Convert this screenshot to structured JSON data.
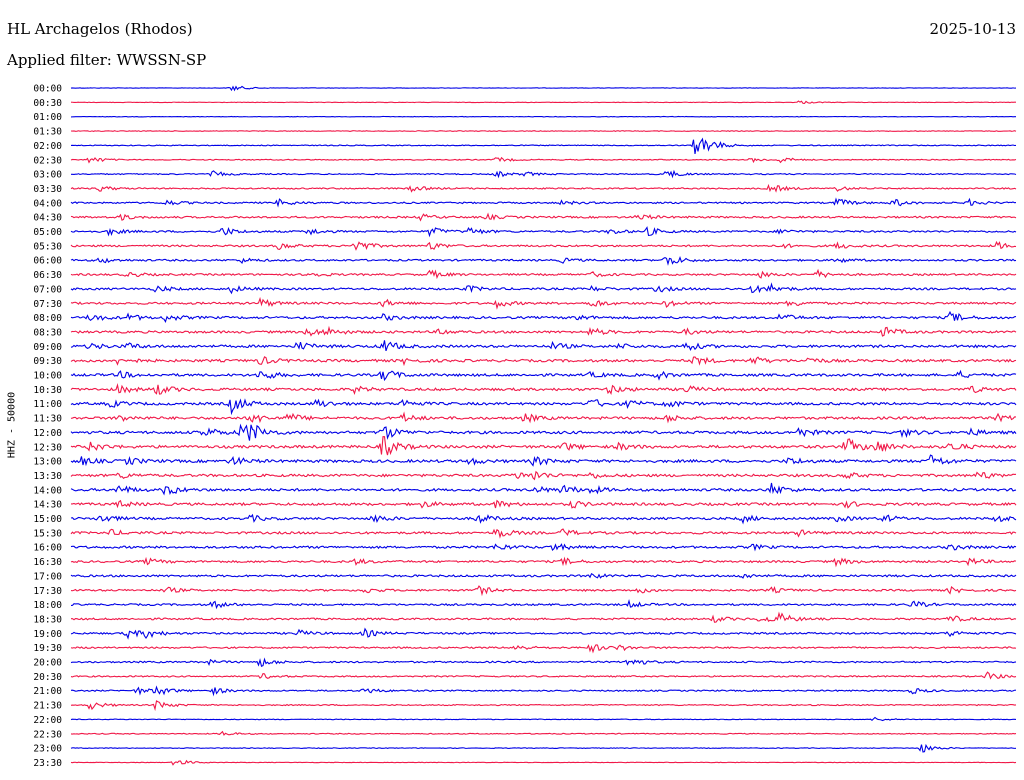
{
  "header": {
    "station": "HL Archagelos (Rhodos)",
    "date": "2025-10-13",
    "filter": "Applied filter: WWSSN-SP",
    "channel": "HHZ - 50000"
  },
  "colors": {
    "blue": "#0000e6",
    "red": "#f01848"
  },
  "chart_data": {
    "type": "line",
    "title": "HL Archagelos (Rhodos)",
    "ylabel": "HHZ - 50000",
    "rows": [
      "00:00",
      "00:30",
      "01:00",
      "01:30",
      "02:00",
      "02:30",
      "03:00",
      "03:30",
      "04:00",
      "04:30",
      "05:00",
      "05:30",
      "06:00",
      "06:30",
      "07:00",
      "07:30",
      "08:00",
      "08:30",
      "09:00",
      "09:30",
      "10:00",
      "10:30",
      "11:00",
      "11:30",
      "12:00",
      "12:30",
      "13:00",
      "13:30",
      "14:00",
      "14:30",
      "15:00",
      "15:30",
      "16:00",
      "16:30",
      "17:00",
      "17:30",
      "18:00",
      "18:30",
      "19:00",
      "19:30",
      "20:00",
      "20:30",
      "21:00",
      "21:30",
      "22:00",
      "22:30",
      "23:00",
      "23:30"
    ],
    "row_colors": [
      "blue",
      "red"
    ],
    "noise": [
      0.1,
      0.1,
      0.1,
      0.15,
      0.2,
      0.2,
      0.25,
      0.3,
      0.35,
      0.4,
      0.4,
      0.4,
      0.4,
      0.4,
      0.45,
      0.45,
      0.5,
      0.5,
      0.55,
      0.55,
      0.55,
      0.55,
      0.55,
      0.55,
      0.6,
      0.6,
      0.6,
      0.55,
      0.55,
      0.55,
      0.5,
      0.5,
      0.5,
      0.45,
      0.45,
      0.4,
      0.4,
      0.4,
      0.4,
      0.35,
      0.35,
      0.3,
      0.3,
      0.25,
      0.15,
      0.2,
      0.15,
      0.1
    ],
    "events": [
      [
        [
          0.17,
          1.5
        ]
      ],
      [
        [
          0.77,
          0.8
        ]
      ],
      [],
      [],
      [
        [
          0.66,
          4
        ],
        [
          0.67,
          3
        ]
      ],
      [
        [
          0.02,
          1.5
        ],
        [
          0.45,
          1.2
        ],
        [
          0.72,
          1.0
        ],
        [
          0.75,
          1.3
        ]
      ],
      [
        [
          0.15,
          1.3
        ],
        [
          0.45,
          1.3
        ],
        [
          0.48,
          0.9
        ],
        [
          0.63,
          2
        ]
      ],
      [
        [
          0.03,
          1.2
        ],
        [
          0.36,
          1.4
        ],
        [
          0.74,
          2
        ],
        [
          0.81,
          1.1
        ]
      ],
      [
        [
          0.1,
          1.2
        ],
        [
          0.22,
          1.6
        ],
        [
          0.52,
          1.0
        ],
        [
          0.81,
          2
        ],
        [
          0.87,
          1.8
        ],
        [
          0.95,
          1.4
        ]
      ],
      [
        [
          0.05,
          1.4
        ],
        [
          0.37,
          1.3
        ],
        [
          0.44,
          1.1
        ],
        [
          0.6,
          1.5
        ]
      ],
      [
        [
          0.04,
          1.4
        ],
        [
          0.16,
          2
        ],
        [
          0.25,
          1.5
        ],
        [
          0.38,
          2
        ],
        [
          0.42,
          1.8
        ],
        [
          0.57,
          1.2
        ],
        [
          0.61,
          1.8
        ],
        [
          0.75,
          1.0
        ]
      ],
      [
        [
          0.22,
          1.6
        ],
        [
          0.3,
          3
        ],
        [
          0.38,
          1.8
        ],
        [
          0.75,
          1.0
        ],
        [
          0.81,
          1.4
        ],
        [
          0.98,
          1.6
        ]
      ],
      [
        [
          0.03,
          1.3
        ],
        [
          0.18,
          1.0
        ],
        [
          0.52,
          1.0
        ],
        [
          0.63,
          3
        ],
        [
          0.81,
          1.1
        ]
      ],
      [
        [
          0.06,
          1.2
        ],
        [
          0.25,
          1.4
        ],
        [
          0.38,
          1.8
        ],
        [
          0.55,
          1.1
        ],
        [
          0.73,
          1.3
        ],
        [
          0.79,
          1.6
        ]
      ],
      [
        [
          0.09,
          1.4
        ],
        [
          0.17,
          1.5
        ],
        [
          0.42,
          1.3
        ],
        [
          0.55,
          1.0
        ],
        [
          0.62,
          1.4
        ],
        [
          0.72,
          1.6
        ],
        [
          0.74,
          1.8
        ]
      ],
      [
        [
          0.2,
          2
        ],
        [
          0.33,
          1.6
        ],
        [
          0.45,
          1.8
        ],
        [
          0.55,
          2
        ],
        [
          0.63,
          1.4
        ],
        [
          0.76,
          1.6
        ]
      ],
      [
        [
          0.02,
          1.8
        ],
        [
          0.06,
          1.4
        ],
        [
          0.1,
          1.5
        ],
        [
          0.33,
          1.3
        ],
        [
          0.53,
          1.6
        ],
        [
          0.75,
          1.8
        ],
        [
          0.93,
          2.5
        ]
      ],
      [
        [
          0.25,
          2
        ],
        [
          0.27,
          1.6
        ],
        [
          0.39,
          1.2
        ],
        [
          0.55,
          1.8
        ],
        [
          0.65,
          1.2
        ],
        [
          0.86,
          2.2
        ]
      ],
      [
        [
          0.02,
          1.4
        ],
        [
          0.06,
          1.2
        ],
        [
          0.24,
          2
        ],
        [
          0.33,
          3
        ],
        [
          0.51,
          1.5
        ],
        [
          0.58,
          1.1
        ],
        [
          0.65,
          2
        ]
      ],
      [
        [
          0.05,
          1.6
        ],
        [
          0.2,
          1.8
        ],
        [
          0.35,
          1.4
        ],
        [
          0.66,
          2
        ],
        [
          0.72,
          2
        ],
        [
          0.78,
          1.3
        ]
      ],
      [
        [
          0.05,
          1.5
        ],
        [
          0.2,
          2.5
        ],
        [
          0.33,
          3
        ],
        [
          0.55,
          1.1
        ],
        [
          0.62,
          1.6
        ],
        [
          0.94,
          1.3
        ]
      ],
      [
        [
          0.05,
          1.8
        ],
        [
          0.09,
          2.5
        ],
        [
          0.3,
          1.3
        ],
        [
          0.57,
          2
        ],
        [
          0.65,
          1.6
        ],
        [
          0.95,
          1.6
        ]
      ],
      [
        [
          0.04,
          1.6
        ],
        [
          0.17,
          4
        ],
        [
          0.26,
          2
        ],
        [
          0.35,
          1.8
        ],
        [
          0.55,
          2.2
        ],
        [
          0.59,
          1.5
        ],
        [
          0.63,
          1.8
        ]
      ],
      [
        [
          0.05,
          1.5
        ],
        [
          0.19,
          2.5
        ],
        [
          0.23,
          2
        ],
        [
          0.35,
          2
        ],
        [
          0.48,
          1.8
        ],
        [
          0.63,
          1.6
        ],
        [
          0.98,
          1.4
        ]
      ],
      [
        [
          0.14,
          2.5
        ],
        [
          0.18,
          4
        ],
        [
          0.19,
          3
        ],
        [
          0.33,
          3.5
        ],
        [
          0.77,
          2
        ],
        [
          0.88,
          1.6
        ],
        [
          0.95,
          1.4
        ]
      ],
      [
        [
          0.02,
          2
        ],
        [
          0.33,
          5
        ],
        [
          0.52,
          1.8
        ],
        [
          0.58,
          1.5
        ],
        [
          0.82,
          4
        ],
        [
          0.85,
          3
        ],
        [
          0.93,
          2
        ]
      ],
      [
        [
          0.01,
          1.8
        ],
        [
          0.06,
          1.5
        ],
        [
          0.17,
          2
        ],
        [
          0.42,
          1.5
        ],
        [
          0.49,
          2
        ],
        [
          0.76,
          1.6
        ],
        [
          0.91,
          3
        ]
      ],
      [
        [
          0.05,
          1.4
        ],
        [
          0.47,
          1.6
        ],
        [
          0.49,
          1.8
        ],
        [
          0.55,
          1.2
        ],
        [
          0.82,
          1.4
        ],
        [
          0.96,
          2
        ]
      ],
      [
        [
          0.05,
          2
        ],
        [
          0.1,
          2.5
        ],
        [
          0.49,
          1.6
        ],
        [
          0.52,
          2
        ],
        [
          0.55,
          1.4
        ],
        [
          0.74,
          3
        ]
      ],
      [
        [
          0.05,
          1.4
        ],
        [
          0.37,
          1.4
        ],
        [
          0.45,
          1.6
        ],
        [
          0.53,
          1.5
        ],
        [
          0.82,
          1.3
        ]
      ],
      [
        [
          0.03,
          2
        ],
        [
          0.19,
          1.4
        ],
        [
          0.32,
          1.8
        ],
        [
          0.43,
          2.2
        ],
        [
          0.71,
          1.6
        ],
        [
          0.81,
          1.4
        ],
        [
          0.86,
          1.6
        ],
        [
          0.98,
          1.8
        ]
      ],
      [
        [
          0.04,
          1.4
        ],
        [
          0.45,
          2.5
        ],
        [
          0.52,
          1.6
        ],
        [
          0.77,
          1.2
        ]
      ],
      [
        [
          0.45,
          1.6
        ],
        [
          0.51,
          1.8
        ],
        [
          0.72,
          1.1
        ],
        [
          0.93,
          1.3
        ]
      ],
      [
        [
          0.08,
          1.4
        ],
        [
          0.3,
          1.2
        ],
        [
          0.52,
          1.5
        ],
        [
          0.81,
          1.6
        ],
        [
          0.95,
          1.4
        ]
      ],
      [
        [
          0.55,
          1.2
        ],
        [
          0.71,
          1.0
        ]
      ],
      [
        [
          0.1,
          1.4
        ],
        [
          0.31,
          1.2
        ],
        [
          0.43,
          2
        ],
        [
          0.6,
          1.3
        ],
        [
          0.74,
          1.2
        ],
        [
          0.93,
          1.3
        ]
      ],
      [
        [
          0.15,
          1.6
        ],
        [
          0.59,
          1.4
        ],
        [
          0.89,
          1.6
        ]
      ],
      [
        [
          0.68,
          1.4
        ],
        [
          0.73,
          2
        ],
        [
          0.75,
          2.2
        ],
        [
          0.93,
          1.6
        ]
      ],
      [
        [
          0.06,
          2
        ],
        [
          0.08,
          1.8
        ],
        [
          0.24,
          1.4
        ],
        [
          0.31,
          1.8
        ],
        [
          0.93,
          1.3
        ]
      ],
      [
        [
          0.47,
          1.4
        ],
        [
          0.55,
          2
        ],
        [
          0.58,
          1.1
        ]
      ],
      [
        [
          0.14,
          1.4
        ],
        [
          0.2,
          2
        ],
        [
          0.59,
          2.5
        ]
      ],
      [
        [
          0.2,
          1.3
        ],
        [
          0.97,
          1.8
        ]
      ],
      [
        [
          0.07,
          1.5
        ],
        [
          0.09,
          2.2
        ],
        [
          0.15,
          1.6
        ],
        [
          0.31,
          1.5
        ],
        [
          0.89,
          1.3
        ]
      ],
      [
        [
          0.02,
          2
        ],
        [
          0.09,
          2.2
        ]
      ],
      [
        [
          0.85,
          1.0
        ]
      ],
      [
        [
          0.16,
          1.0
        ]
      ],
      [
        [
          0.9,
          2.2
        ]
      ],
      [
        [
          0.11,
          2
        ]
      ]
    ]
  }
}
